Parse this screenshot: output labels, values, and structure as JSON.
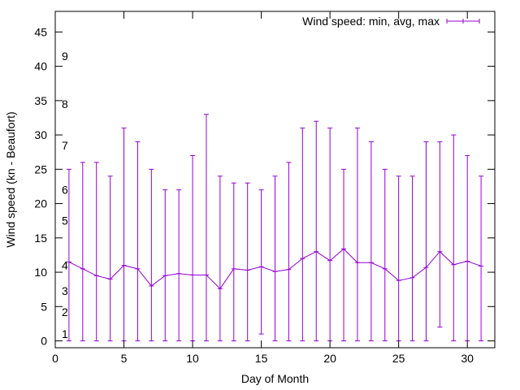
{
  "chart_data": {
    "type": "line",
    "title": "",
    "xlabel": "Day of Month",
    "ylabel": "Wind speed (kn - Beaufort)",
    "xlim": [
      0,
      32
    ],
    "ylim": [
      -1,
      48
    ],
    "xticks": [
      0,
      5,
      10,
      15,
      20,
      25,
      30
    ],
    "yticks": [
      0,
      5,
      10,
      15,
      20,
      25,
      30,
      35,
      40,
      45
    ],
    "beaufort_labels": [
      {
        "label": "1",
        "y": 1
      },
      {
        "label": "2",
        "y": 4.2
      },
      {
        "label": "3",
        "y": 7.3
      },
      {
        "label": "4",
        "y": 11
      },
      {
        "label": "5",
        "y": 17.5
      },
      {
        "label": "6",
        "y": 22
      },
      {
        "label": "7",
        "y": 28.5
      },
      {
        "label": "8",
        "y": 34.5
      },
      {
        "label": "9",
        "y": 41.5
      }
    ],
    "grid": false,
    "legend_position": "top-right",
    "series": [
      {
        "name": "Wind speed: min, avg, max",
        "color": "#9400d3",
        "x": [
          1,
          2,
          3,
          4,
          5,
          6,
          7,
          8,
          9,
          10,
          11,
          12,
          13,
          14,
          15,
          16,
          17,
          18,
          19,
          20,
          21,
          22,
          23,
          24,
          25,
          26,
          27,
          28,
          29,
          30,
          31
        ],
        "min": [
          0,
          0,
          0,
          0,
          0,
          0,
          0,
          0,
          0,
          0,
          0,
          0,
          0,
          0,
          1,
          0,
          0,
          0,
          0,
          0,
          0,
          0,
          0,
          0,
          0,
          0,
          0,
          2,
          0,
          0,
          0
        ],
        "avg": [
          11.5,
          10.5,
          9.5,
          9,
          11,
          10.5,
          8,
          9.5,
          9.8,
          9.6,
          9.6,
          7.6,
          10.5,
          10.3,
          10.8,
          10.1,
          10.4,
          12,
          13,
          11.7,
          13.4,
          11.4,
          11.4,
          10.5,
          8.8,
          9.2,
          10.7,
          13,
          11.1,
          11.6,
          10.9
        ],
        "max": [
          25,
          26,
          26,
          24,
          31,
          29,
          25,
          22,
          22,
          27,
          33,
          24,
          23,
          23,
          22,
          24,
          26,
          31,
          32,
          31,
          25,
          31,
          29,
          25,
          24,
          24,
          29,
          29,
          30,
          27,
          24
        ]
      }
    ]
  }
}
